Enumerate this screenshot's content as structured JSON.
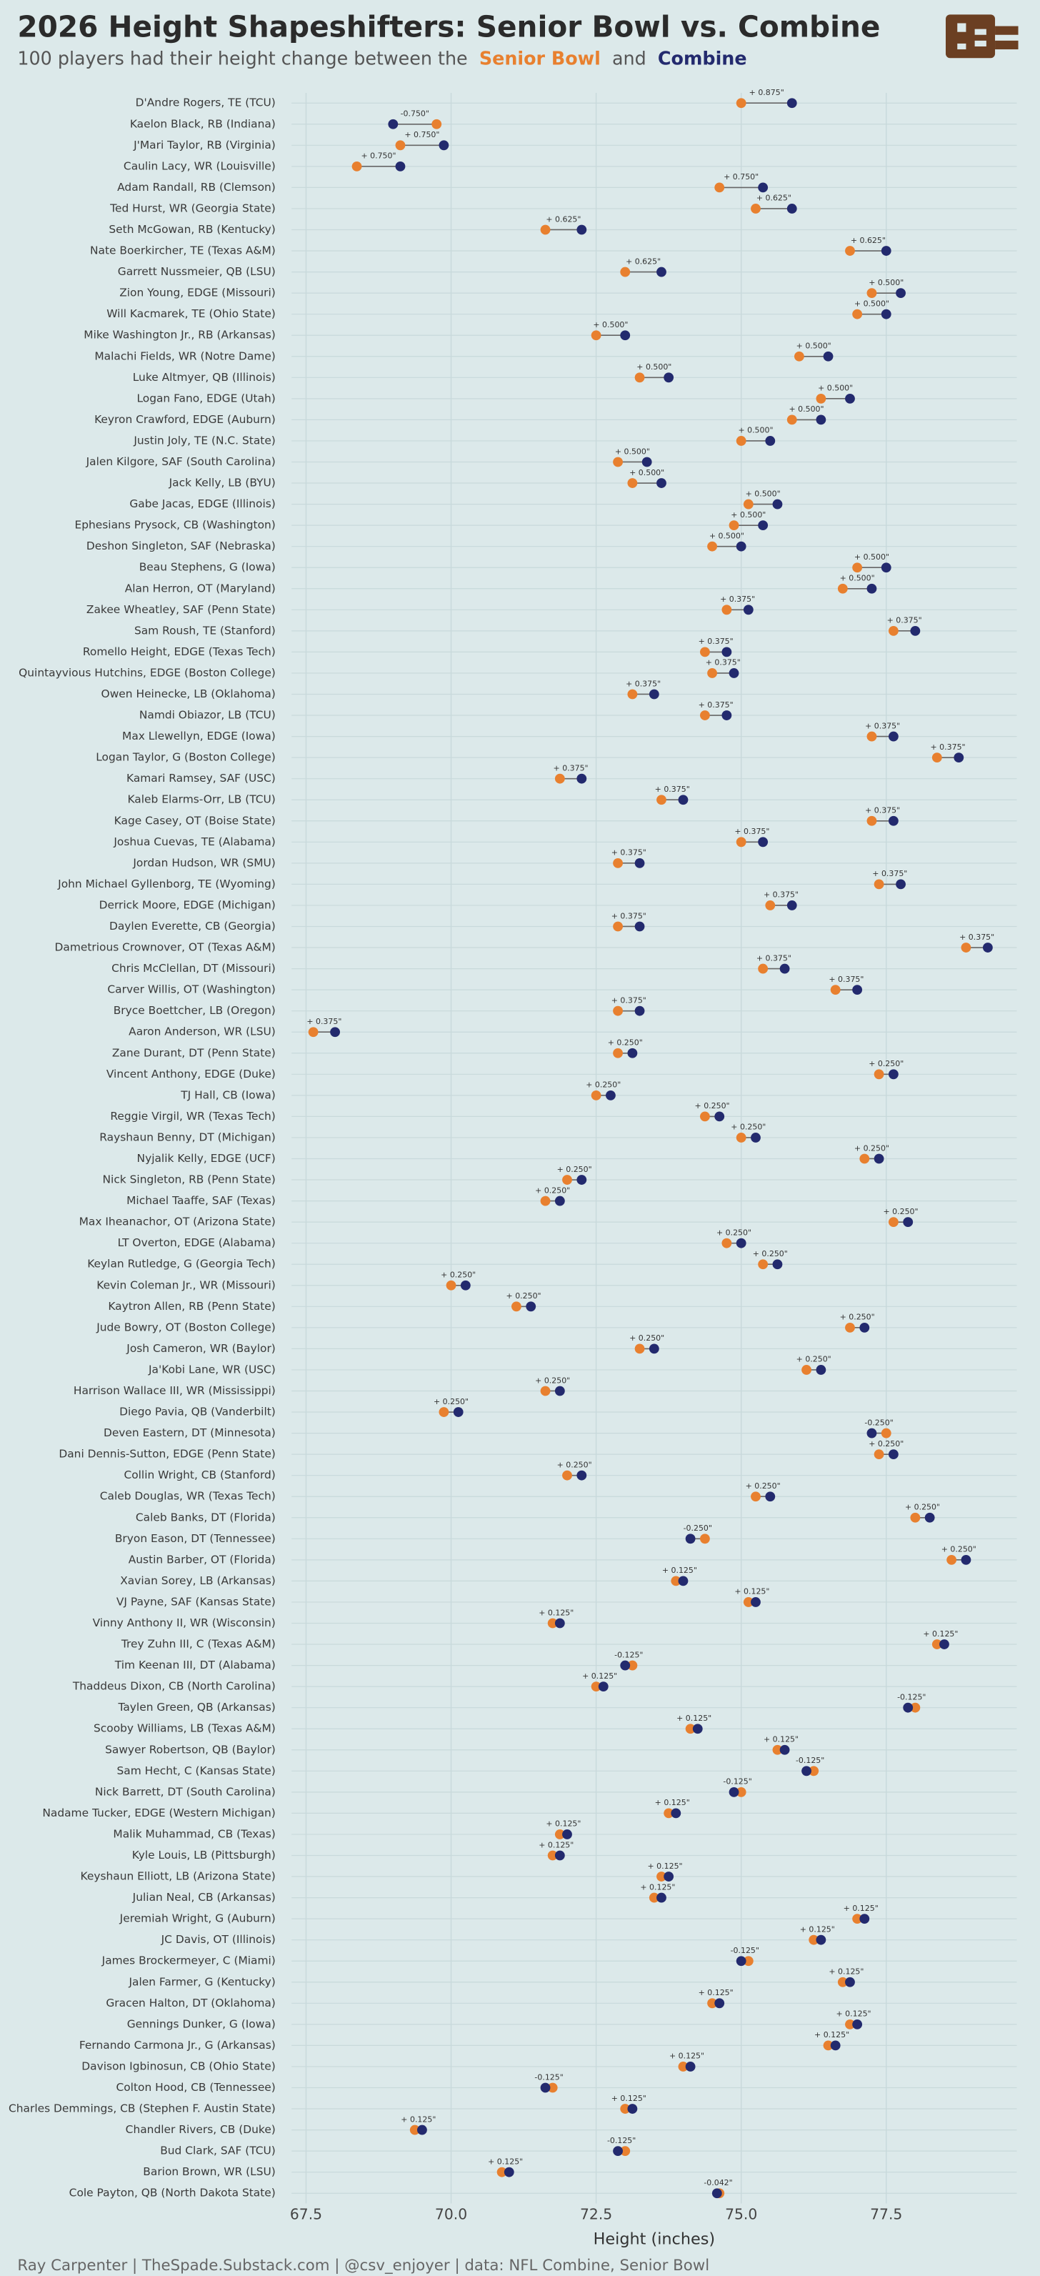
{
  "chart_data": {
    "type": "dumbbell",
    "title": "2026 Height Shapeshifters: Senior Bowl vs. Combine",
    "subtitle": "100 players had their height change between the",
    "subtitle_joiner": "and",
    "x_label": "Height (inches)",
    "footer": "Ray Carpenter | TheSpade.Substack.com | @csv_enjoyer | data: NFL Combine, Senior Bowl",
    "grid": true,
    "xlim": [
      67.25,
      79.75
    ],
    "xticks": [
      67.5,
      {
        "value": 70,
        "label": "70.0"
      },
      72.5,
      {
        "value": 75,
        "label": "75.0"
      },
      77.5
    ],
    "categories": [
      "D'Andre Rogers, TE (TCU)",
      "Kaelon Black, RB (Indiana)",
      "J'Mari Taylor, RB (Virginia)",
      "Caulin Lacy, WR (Louisville)",
      "Adam Randall, RB (Clemson)",
      "Ted Hurst, WR (Georgia State)",
      "Seth McGowan, RB (Kentucky)",
      "Nate Boerkircher, TE (Texas A&M)",
      "Garrett Nussmeier, QB (LSU)",
      "Zion Young, EDGE (Missouri)",
      "Will Kacmarek, TE (Ohio State)",
      "Mike Washington Jr., RB (Arkansas)",
      "Malachi Fields, WR (Notre Dame)",
      "Luke Altmyer, QB (Illinois)",
      "Logan Fano, EDGE (Utah)",
      "Keyron Crawford, EDGE (Auburn)",
      "Justin Joly, TE (N.C. State)",
      "Jalen Kilgore, SAF (South Carolina)",
      "Jack Kelly, LB (BYU)",
      "Gabe Jacas, EDGE (Illinois)",
      "Ephesians Prysock, CB (Washington)",
      "Deshon Singleton, SAF (Nebraska)",
      "Beau Stephens, G (Iowa)",
      "Alan Herron, OT (Maryland)",
      "Zakee Wheatley, SAF (Penn State)",
      "Sam Roush, TE (Stanford)",
      "Romello Height, EDGE (Texas Tech)",
      "Quintayvious Hutchins, EDGE (Boston College)",
      "Owen Heinecke, LB (Oklahoma)",
      "Namdi Obiazor, LB (TCU)",
      "Max Llewellyn, EDGE (Iowa)",
      "Logan Taylor, G (Boston College)",
      "Kamari Ramsey, SAF (USC)",
      "Kaleb Elarms-Orr, LB (TCU)",
      "Kage Casey, OT (Boise State)",
      "Joshua Cuevas, TE (Alabama)",
      "Jordan Hudson, WR (SMU)",
      "John Michael Gyllenborg, TE (Wyoming)",
      "Derrick Moore, EDGE (Michigan)",
      "Daylen Everette, CB (Georgia)",
      "Dametrious Crownover, OT (Texas A&M)",
      "Chris McClellan, DT (Missouri)",
      "Carver Willis, OT (Washington)",
      "Bryce Boettcher, LB (Oregon)",
      "Aaron Anderson, WR (LSU)",
      "Zane Durant, DT (Penn State)",
      "Vincent Anthony, EDGE (Duke)",
      "TJ Hall, CB (Iowa)",
      "Reggie Virgil, WR (Texas Tech)",
      "Rayshaun Benny, DT (Michigan)",
      "Nyjalik Kelly, EDGE (UCF)",
      "Nick Singleton, RB (Penn State)",
      "Michael Taaffe, SAF (Texas)",
      "Max Iheanachor, OT (Arizona State)",
      "LT Overton, EDGE (Alabama)",
      "Keylan Rutledge, G (Georgia Tech)",
      "Kevin Coleman Jr., WR (Missouri)",
      "Kaytron Allen, RB (Penn State)",
      "Jude Bowry, OT (Boston College)",
      "Josh Cameron, WR (Baylor)",
      "Ja'Kobi Lane, WR (USC)",
      "Harrison Wallace III, WR (Mississippi)",
      "Diego Pavia, QB (Vanderbilt)",
      "Deven Eastern, DT (Minnesota)",
      "Dani Dennis-Sutton, EDGE (Penn State)",
      "Collin Wright, CB (Stanford)",
      "Caleb Douglas, WR (Texas Tech)",
      "Caleb Banks, DT (Florida)",
      "Bryon Eason, DT (Tennessee)",
      "Austin Barber, OT (Florida)",
      "Xavian Sorey, LB (Arkansas)",
      "VJ Payne, SAF (Kansas State)",
      "Vinny Anthony II, WR (Wisconsin)",
      "Trey Zuhn III, C (Texas A&M)",
      "Tim Keenan III, DT (Alabama)",
      "Thaddeus Dixon, CB (North Carolina)",
      "Taylen Green, QB (Arkansas)",
      "Scooby Williams, LB (Texas A&M)",
      "Sawyer Robertson, QB (Baylor)",
      "Sam Hecht, C (Kansas State)",
      "Nick Barrett, DT (South Carolina)",
      "Nadame Tucker, EDGE (Western Michigan)",
      "Malik Muhammad, CB (Texas)",
      "Kyle Louis, LB (Pittsburgh)",
      "Keyshaun Elliott, LB (Arizona State)",
      "Julian Neal, CB (Arkansas)",
      "Jeremiah Wright, G (Auburn)",
      "JC Davis, OT (Illinois)",
      "James Brockermeyer, C (Miami)",
      "Jalen Farmer, G (Kentucky)",
      "Gracen Halton, DT (Oklahoma)",
      "Gennings Dunker, G (Iowa)",
      "Fernando Carmona Jr., G (Arkansas)",
      "Davison Igbinosun, CB (Ohio State)",
      "Colton Hood, CB (Tennessee)",
      "Charles Demmings, CB (Stephen F. Austin State)",
      "Chandler Rivers, CB (Duke)",
      "Bud Clark, SAF (TCU)",
      "Barion Brown, WR (LSU)",
      "Cole Payton, QB (North Dakota State)"
    ],
    "series": [
      {
        "name": "Senior Bowl",
        "color": "#e8802f",
        "values": [
          75.0,
          69.75,
          69.125,
          68.375,
          74.625,
          75.25,
          71.625,
          76.875,
          73.0,
          77.25,
          77.0,
          72.5,
          76.0,
          73.25,
          76.375,
          75.875,
          75.0,
          72.875,
          73.125,
          75.125,
          74.875,
          74.5,
          77.0,
          76.75,
          74.75,
          77.625,
          74.375,
          74.5,
          73.125,
          74.375,
          77.25,
          78.375,
          71.875,
          73.625,
          77.25,
          75.0,
          72.875,
          77.375,
          75.5,
          72.875,
          78.875,
          75.375,
          76.625,
          72.875,
          67.625,
          72.875,
          77.375,
          72.5,
          74.375,
          75.0,
          77.125,
          72.0,
          71.625,
          77.625,
          74.75,
          75.375,
          70.0,
          71.125,
          76.875,
          73.25,
          76.125,
          71.625,
          69.875,
          77.5,
          77.375,
          72.0,
          75.25,
          78.0,
          74.375,
          78.625,
          73.875,
          75.125,
          71.75,
          78.375,
          73.125,
          72.5,
          78.0,
          74.125,
          75.625,
          76.25,
          75.0,
          73.75,
          71.875,
          71.75,
          73.625,
          73.5,
          77.0,
          76.25,
          75.125,
          76.75,
          74.5,
          76.875,
          76.5,
          74.0,
          71.75,
          73.0,
          69.375,
          73.0,
          70.875,
          74.625
        ]
      },
      {
        "name": "Combine",
        "color": "#232a6e",
        "values": [
          75.875,
          69.0,
          69.875,
          69.125,
          75.375,
          75.875,
          72.25,
          77.5,
          73.625,
          77.75,
          77.5,
          73.0,
          76.5,
          73.75,
          76.875,
          76.375,
          75.5,
          73.375,
          73.625,
          75.625,
          75.375,
          75.0,
          77.5,
          77.25,
          75.125,
          78.0,
          74.75,
          74.875,
          73.5,
          74.75,
          77.625,
          78.75,
          72.25,
          74.0,
          77.625,
          75.375,
          73.25,
          77.75,
          75.875,
          73.25,
          79.25,
          75.75,
          77.0,
          73.25,
          68.0,
          73.125,
          77.625,
          72.75,
          74.625,
          75.25,
          77.375,
          72.25,
          71.875,
          77.875,
          75.0,
          75.625,
          70.25,
          71.375,
          77.125,
          73.5,
          76.375,
          71.875,
          70.125,
          77.25,
          77.625,
          72.25,
          75.5,
          78.25,
          74.125,
          78.875,
          74.0,
          75.25,
          71.875,
          78.5,
          73.0,
          72.625,
          77.875,
          74.25,
          75.75,
          76.125,
          74.875,
          73.875,
          72.0,
          71.875,
          73.75,
          73.625,
          77.125,
          76.375,
          75.0,
          76.875,
          74.625,
          77.0,
          76.625,
          74.125,
          71.625,
          73.125,
          69.5,
          72.875,
          71.0,
          74.583
        ]
      }
    ],
    "change": {
      "values": [
        0.875,
        -0.75,
        0.75,
        0.75,
        0.75,
        0.625,
        0.625,
        0.625,
        0.625,
        0.5,
        0.5,
        0.5,
        0.5,
        0.5,
        0.5,
        0.5,
        0.5,
        0.5,
        0.5,
        0.5,
        0.5,
        0.5,
        0.5,
        0.5,
        0.375,
        0.375,
        0.375,
        0.375,
        0.375,
        0.375,
        0.375,
        0.375,
        0.375,
        0.375,
        0.375,
        0.375,
        0.375,
        0.375,
        0.375,
        0.375,
        0.375,
        0.375,
        0.375,
        0.375,
        0.375,
        0.25,
        0.25,
        0.25,
        0.25,
        0.25,
        0.25,
        0.25,
        0.25,
        0.25,
        0.25,
        0.25,
        0.25,
        0.25,
        0.25,
        0.25,
        0.25,
        0.25,
        0.25,
        -0.25,
        0.25,
        0.25,
        0.25,
        0.25,
        -0.25,
        0.25,
        0.125,
        0.125,
        0.125,
        0.125,
        -0.125,
        0.125,
        -0.125,
        0.125,
        0.125,
        -0.125,
        -0.125,
        0.125,
        0.125,
        0.125,
        0.125,
        0.125,
        0.125,
        0.125,
        -0.125,
        0.125,
        0.125,
        0.125,
        0.125,
        0.125,
        -0.125,
        0.125,
        0.125,
        -0.125,
        0.125,
        -0.042
      ],
      "value_labels": [
        "+ 0.875\"",
        "-0.750\"",
        "+ 0.750\"",
        "+ 0.750\"",
        "+ 0.750\"",
        "+ 0.625\"",
        "+ 0.625\"",
        "+ 0.625\"",
        "+ 0.625\"",
        "+ 0.500\"",
        "+ 0.500\"",
        "+ 0.500\"",
        "+ 0.500\"",
        "+ 0.500\"",
        "+ 0.500\"",
        "+ 0.500\"",
        "+ 0.500\"",
        "+ 0.500\"",
        "+ 0.500\"",
        "+ 0.500\"",
        "+ 0.500\"",
        "+ 0.500\"",
        "+ 0.500\"",
        "+ 0.500\"",
        "+ 0.375\"",
        "+ 0.375\"",
        "+ 0.375\"",
        "+ 0.375\"",
        "+ 0.375\"",
        "+ 0.375\"",
        "+ 0.375\"",
        "+ 0.375\"",
        "+ 0.375\"",
        "+ 0.375\"",
        "+ 0.375\"",
        "+ 0.375\"",
        "+ 0.375\"",
        "+ 0.375\"",
        "+ 0.375\"",
        "+ 0.375\"",
        "+ 0.375\"",
        "+ 0.375\"",
        "+ 0.375\"",
        "+ 0.375\"",
        "+ 0.375\"",
        "+ 0.250\"",
        "+ 0.250\"",
        "+ 0.250\"",
        "+ 0.250\"",
        "+ 0.250\"",
        "+ 0.250\"",
        "+ 0.250\"",
        "+ 0.250\"",
        "+ 0.250\"",
        "+ 0.250\"",
        "+ 0.250\"",
        "+ 0.250\"",
        "+ 0.250\"",
        "+ 0.250\"",
        "+ 0.250\"",
        "+ 0.250\"",
        "+ 0.250\"",
        "+ 0.250\"",
        "-0.250\"",
        "+ 0.250\"",
        "+ 0.250\"",
        "+ 0.250\"",
        "+ 0.250\"",
        "-0.250\"",
        "+ 0.250\"",
        "+ 0.125\"",
        "+ 0.125\"",
        "+ 0.125\"",
        "+ 0.125\"",
        "-0.125\"",
        "+ 0.125\"",
        "-0.125\"",
        "+ 0.125\"",
        "+ 0.125\"",
        "-0.125\"",
        "-0.125\"",
        "+ 0.125\"",
        "+ 0.125\"",
        "+ 0.125\"",
        "+ 0.125\"",
        "+ 0.125\"",
        "+ 0.125\"",
        "+ 0.125\"",
        "-0.125\"",
        "+ 0.125\"",
        "+ 0.125\"",
        "+ 0.125\"",
        "+ 0.125\"",
        "+ 0.125\"",
        "-0.125\"",
        "+ 0.125\"",
        "+ 0.125\"",
        "-0.125\"",
        "+ 0.125\"",
        "-0.042\""
      ]
    }
  }
}
